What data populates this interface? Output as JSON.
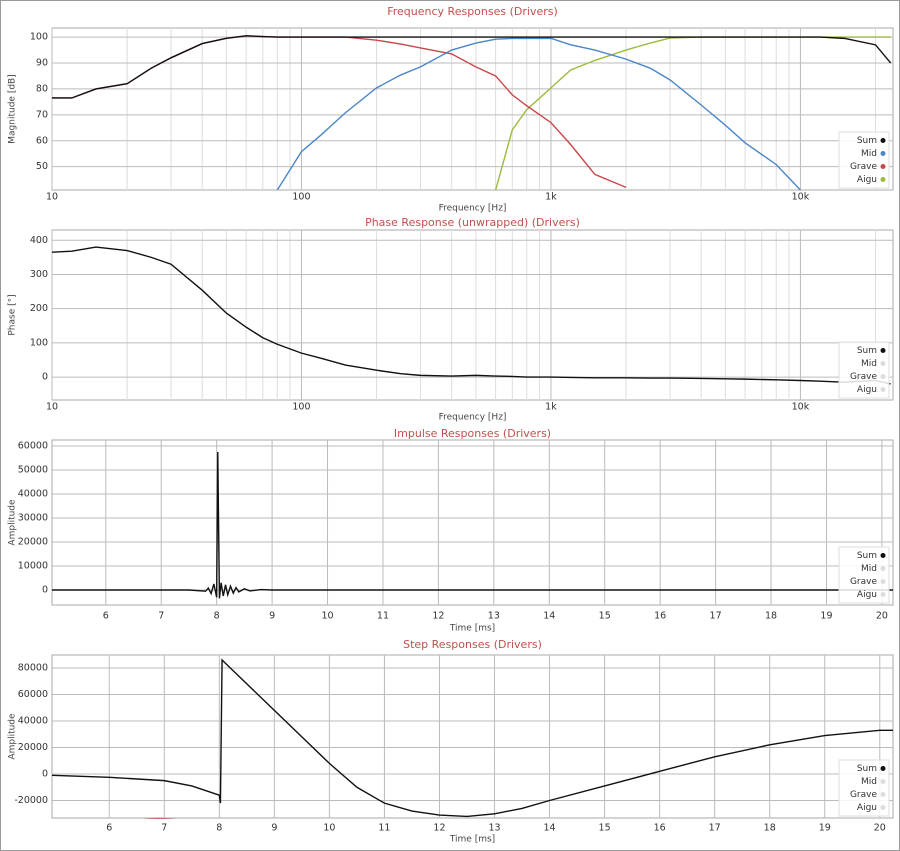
{
  "chart_data": [
    {
      "type": "line",
      "title": "Frequency Responses (Drivers)",
      "x_label": "Frequency [Hz]",
      "y_label": "Magnitude [dB]",
      "xscale": "log",
      "minor_grid": true,
      "grid": true,
      "legend": "lower right",
      "xlim": [
        10,
        23500
      ],
      "ylim": [
        41,
        103.5
      ],
      "xticks": [
        10,
        100,
        {
          "value": 1000,
          "label": "1k"
        },
        {
          "value": 10000,
          "label": "10k"
        }
      ],
      "yticks": [
        50,
        60,
        70,
        80,
        90,
        100
      ],
      "x": [
        10,
        12,
        15,
        20,
        25,
        30,
        40,
        50,
        60,
        70,
        80,
        100,
        120,
        150,
        200,
        250,
        300,
        400,
        500,
        600,
        700,
        800,
        1000,
        1200,
        1500,
        2000,
        2500,
        3000,
        4000,
        5000,
        6000,
        8000,
        10000,
        12000,
        15000,
        20000,
        23000
      ],
      "series": [
        {
          "name": "Sum",
          "color": "#111111",
          "values": [
            76.5,
            76.5,
            80,
            82,
            88,
            92,
            97.5,
            99.5,
            100.5,
            100.2,
            100,
            100,
            100,
            100,
            100,
            100,
            100,
            100,
            100,
            100,
            100,
            100,
            100,
            100,
            100,
            100,
            100,
            100,
            100,
            100,
            100,
            100,
            100,
            100,
            99.5,
            97,
            90
          ]
        },
        {
          "name": "Mid",
          "color": "#4a86c8",
          "values": [
            null,
            null,
            null,
            null,
            null,
            null,
            null,
            null,
            null,
            null,
            41,
            55.8,
            62.3,
            70.8,
            80.4,
            85.4,
            88.5,
            95,
            97.7,
            99.2,
            99.5,
            99.5,
            99.5,
            97,
            95,
            91.5,
            88,
            83.5,
            73.8,
            66,
            59.2,
            50.8,
            41,
            null,
            null,
            null,
            null
          ]
        },
        {
          "name": "Grave",
          "color": "#c9474a",
          "values": [
            76.5,
            76.5,
            80,
            82,
            88,
            92,
            97.5,
            99.5,
            100.5,
            100.2,
            100,
            100,
            100,
            100,
            98.8,
            97.3,
            95.8,
            93.5,
            88.5,
            85,
            77.7,
            73.5,
            67,
            58.5,
            47,
            42,
            null,
            null,
            null,
            null,
            null,
            null,
            null,
            null,
            null,
            null,
            null
          ]
        },
        {
          "name": "Aigu",
          "color": "#9bbb3c",
          "values": [
            null,
            null,
            null,
            null,
            null,
            null,
            null,
            null,
            null,
            null,
            null,
            null,
            null,
            null,
            null,
            null,
            null,
            null,
            null,
            41,
            64.2,
            72,
            80.4,
            87.3,
            91,
            95,
            97.7,
            99.6,
            100,
            100,
            100,
            100,
            100,
            100,
            100,
            100,
            100
          ]
        }
      ]
    },
    {
      "type": "line",
      "title": "Phase Response (unwrapped) (Drivers)",
      "x_label": "Frequency [Hz]",
      "y_label": "Phase [°]",
      "xscale": "log",
      "minor_grid": true,
      "grid": true,
      "legend": "lower right",
      "xlim": [
        10,
        23500
      ],
      "ylim": [
        -67,
        430
      ],
      "xticks": [
        10,
        100,
        {
          "value": 1000,
          "label": "1k"
        },
        {
          "value": 10000,
          "label": "10k"
        }
      ],
      "yticks": [
        0,
        100,
        200,
        300,
        400
      ],
      "x": [
        10,
        12,
        15,
        20,
        25,
        30,
        40,
        50,
        60,
        70,
        80,
        100,
        120,
        150,
        200,
        250,
        300,
        400,
        500,
        600,
        700,
        800,
        1000,
        1200,
        1500,
        2000,
        2500,
        3000,
        4000,
        5000,
        6000,
        8000,
        10000,
        12000,
        15000,
        20000,
        23000
      ],
      "series": [
        {
          "name": "Sum",
          "color": "#111111",
          "values": [
            365,
            368,
            380,
            370,
            350,
            330,
            254,
            187,
            146,
            115,
            96,
            70,
            55,
            35,
            20,
            10,
            5,
            3,
            5,
            3,
            2,
            0,
            0,
            -1,
            -2,
            -2,
            -3,
            -3,
            -4,
            -5,
            -6,
            -8,
            -10,
            -12,
            -15,
            -10,
            -20
          ]
        },
        {
          "name": "Mid",
          "color": "#dddddd",
          "visible": false
        },
        {
          "name": "Grave",
          "color": "#dddddd",
          "visible": false
        },
        {
          "name": "Aigu",
          "color": "#dddddd",
          "visible": false
        }
      ]
    },
    {
      "type": "line",
      "title": "Impulse Responses (Drivers)",
      "x_label": "Time [ms]",
      "y_label": "Amplitude",
      "grid": true,
      "legend": "lower right",
      "xlim": [
        5.03,
        20.2
      ],
      "ylim": [
        -6250,
        62500
      ],
      "xticks": [
        6,
        7,
        8,
        9,
        10,
        11,
        12,
        13,
        14,
        15,
        16,
        17,
        18,
        19,
        20
      ],
      "yticks": [
        0,
        10000,
        20000,
        30000,
        40000,
        50000,
        60000
      ],
      "x": [
        5.03,
        7.5,
        7.8,
        7.85,
        7.9,
        7.95,
        8.0,
        8.02,
        8.05,
        8.08,
        8.12,
        8.16,
        8.2,
        8.25,
        8.3,
        8.35,
        8.4,
        8.5,
        8.6,
        8.8,
        9,
        20.2
      ],
      "series": [
        {
          "name": "Sum",
          "color": "#111111",
          "values": [
            0,
            0,
            -500,
            800,
            -1500,
            2500,
            -3000,
            57500,
            -3500,
            3000,
            -2500,
            2200,
            -2000,
            1600,
            -1300,
            1000,
            -800,
            500,
            -400,
            200,
            0,
            0
          ]
        },
        {
          "name": "Mid",
          "color": "#dddddd",
          "visible": false
        },
        {
          "name": "Grave",
          "color": "#dddddd",
          "visible": false
        },
        {
          "name": "Aigu",
          "color": "#dddddd",
          "visible": false
        }
      ]
    },
    {
      "type": "line",
      "title": "Step Responses (Drivers)",
      "x_label": "Time [ms]",
      "y_label": "Amplitude",
      "grid": true,
      "legend": "lower right",
      "xlim": [
        4.96,
        20.24
      ],
      "ylim": [
        -33200,
        89800
      ],
      "xticks": [
        6,
        7,
        8,
        9,
        10,
        11,
        12,
        13,
        14,
        15,
        16,
        17,
        18,
        19,
        20
      ],
      "yticks": [
        -20000,
        0,
        20000,
        40000,
        60000,
        80000
      ],
      "x": [
        4.96,
        6,
        7,
        7.5,
        8,
        8.02,
        8.05,
        8.2,
        8.5,
        9,
        9.5,
        10,
        10.5,
        11,
        11.5,
        12,
        12.5,
        13,
        13.5,
        14,
        15,
        16,
        17,
        18,
        19,
        20,
        20.24
      ],
      "series": [
        {
          "name": "Sum",
          "color": "#111111",
          "values": [
            -1000,
            -2500,
            -5000,
            -9000,
            -16000,
            -22000,
            86000,
            80000,
            68000,
            48000,
            28000,
            8000,
            -10000,
            -22000,
            -28000,
            -31000,
            -32000,
            -30000,
            -26000,
            -20000,
            -9000,
            2000,
            13000,
            22000,
            29000,
            33000,
            33000
          ]
        },
        {
          "name": "Mid",
          "color": "#dddddd",
          "visible": false
        },
        {
          "name": "Grave",
          "color": "#dddddd",
          "visible": false
        },
        {
          "name": "Aigu",
          "color": "#dddddd",
          "visible": false
        }
      ]
    }
  ]
}
